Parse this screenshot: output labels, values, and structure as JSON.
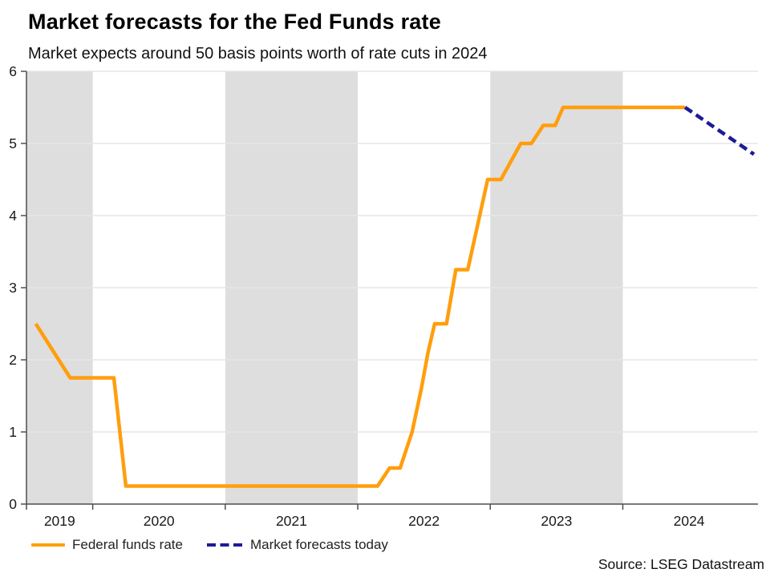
{
  "header": {
    "title": "Market forecasts for the Fed Funds rate",
    "subtitle": "Market expects around 50 basis points worth of rate cuts in 2024"
  },
  "source": "Source: LSEG Datastream",
  "legend": [
    {
      "label": "Federal funds rate",
      "color": "#FF9E0D",
      "style": "solid"
    },
    {
      "label": "Market forecasts today",
      "color": "#1C1C96",
      "style": "dashed"
    }
  ],
  "colors": {
    "band": "#DEDEDE",
    "gridline": "#E6E6E6",
    "axis": "#4F4F4F",
    "tick_label": "#1a1a1a",
    "orange_line": "#FF9E0D",
    "navy_line": "#1C1C96"
  },
  "chart_data": {
    "type": "line",
    "title": "Market forecasts for the Fed Funds rate",
    "subtitle": "Market expects around 50 basis points worth of rate cuts in 2024",
    "xlabel": "",
    "ylabel": "",
    "ylim": [
      0,
      6
    ],
    "xlim": [
      2019.5,
      2025.02
    ],
    "y_ticks": [
      0,
      1,
      2,
      3,
      4,
      5,
      6
    ],
    "x_ticks": [
      2019.5,
      2020,
      2021,
      2022,
      2023,
      2024
    ],
    "x_labels": [
      {
        "label": "2019",
        "x": 2019.75
      },
      {
        "label": "2020",
        "x": 2020.5
      },
      {
        "label": "2021",
        "x": 2021.5
      },
      {
        "label": "2022",
        "x": 2022.5
      },
      {
        "label": "2023",
        "x": 2023.5
      },
      {
        "label": "2024",
        "x": 2024.5
      }
    ],
    "shaded_bands": [
      [
        2019.5,
        2020
      ],
      [
        2021,
        2022
      ],
      [
        2023,
        2024
      ]
    ],
    "grid": true,
    "legend_position": "bottom-left",
    "series": [
      {
        "name": "Federal funds rate",
        "color": "#FF9E0D",
        "style": "solid",
        "points": [
          [
            2019.57,
            2.5
          ],
          [
            2019.83,
            1.75
          ],
          [
            2020.16,
            1.75
          ],
          [
            2020.25,
            0.25
          ],
          [
            2022.15,
            0.25
          ],
          [
            2022.24,
            0.5
          ],
          [
            2022.32,
            0.5
          ],
          [
            2022.41,
            1.0
          ],
          [
            2022.48,
            1.6
          ],
          [
            2022.53,
            2.1
          ],
          [
            2022.58,
            2.5
          ],
          [
            2022.67,
            2.5
          ],
          [
            2022.74,
            3.25
          ],
          [
            2022.83,
            3.25
          ],
          [
            2022.98,
            4.5
          ],
          [
            2023.08,
            4.5
          ],
          [
            2023.23,
            5.0
          ],
          [
            2023.31,
            5.0
          ],
          [
            2023.4,
            5.25
          ],
          [
            2023.49,
            5.25
          ],
          [
            2023.55,
            5.5
          ],
          [
            2024.47,
            5.5
          ]
        ]
      },
      {
        "name": "Market forecasts today",
        "color": "#1C1C96",
        "style": "dashed",
        "points": [
          [
            2024.47,
            5.5
          ],
          [
            2024.99,
            4.85
          ]
        ]
      }
    ]
  }
}
